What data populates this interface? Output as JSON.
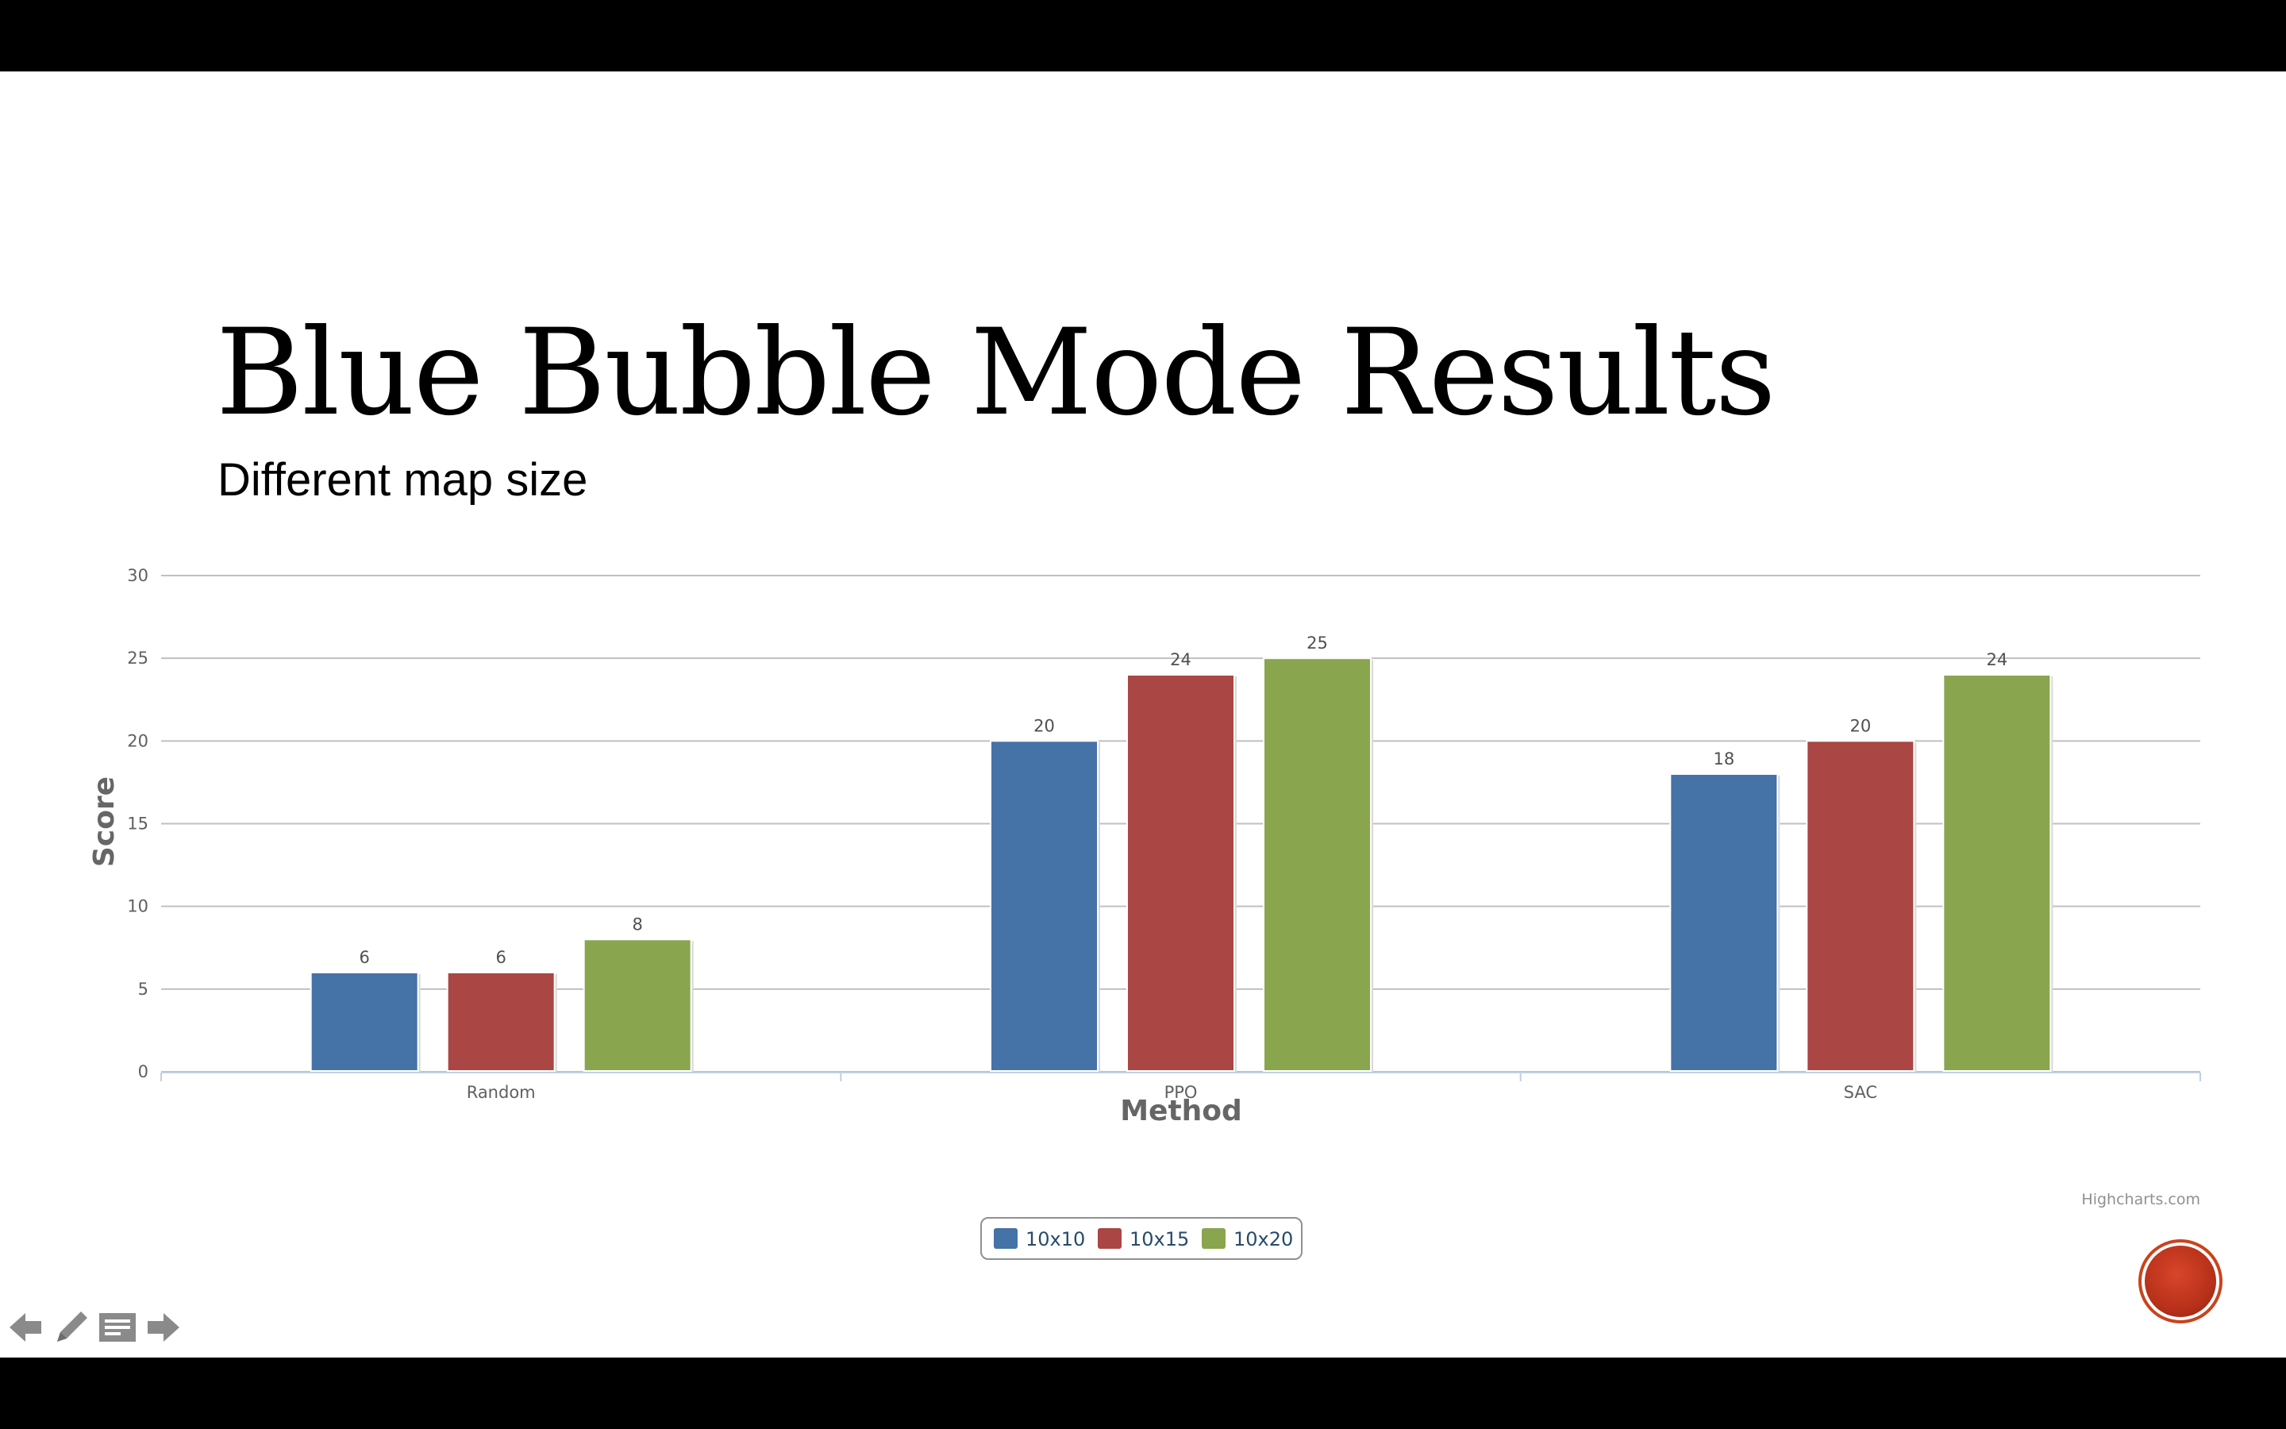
{
  "slide": {
    "title": "Blue Bubble Mode Results",
    "subtitle": "Different map size"
  },
  "chart_data": {
    "type": "bar",
    "categories": [
      "Random",
      "PPO",
      "SAC"
    ],
    "series": [
      {
        "name": "10x10",
        "color": "#4572a7",
        "values": [
          6,
          20,
          18
        ]
      },
      {
        "name": "10x15",
        "color": "#aa4643",
        "values": [
          6,
          24,
          20
        ]
      },
      {
        "name": "10x20",
        "color": "#89a54e",
        "values": [
          8,
          25,
          24
        ]
      }
    ],
    "xlabel": "Method",
    "ylabel": "Score",
    "ylim": [
      0,
      30
    ],
    "yticks": [
      0,
      5,
      10,
      15,
      20,
      25,
      30
    ],
    "grid": true,
    "legend_position": "bottom-center",
    "data_labels": true,
    "credit": "Highcharts.com"
  },
  "controls": {
    "prev_icon": "arrow-left-icon",
    "pen_icon": "pencil-icon",
    "notes_icon": "notes-icon",
    "next_icon": "arrow-right-icon",
    "record_color": "#c8441e"
  }
}
